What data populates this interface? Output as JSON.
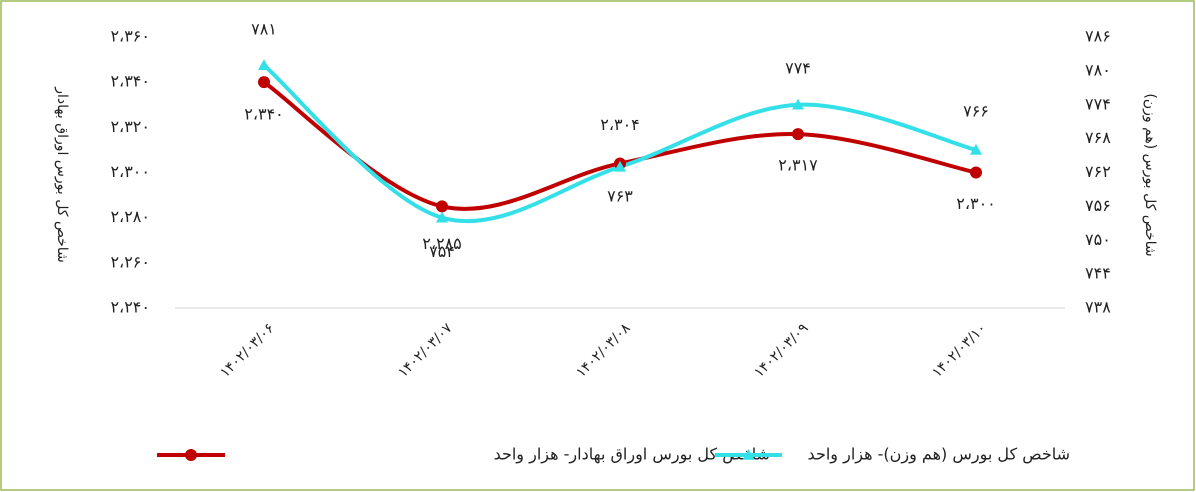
{
  "chart_data": {
    "type": "line",
    "categories": [
      "۱۴۰۲/۰۳/۰۶",
      "۱۴۰۲/۰۳/۰۷",
      "۱۴۰۲/۰۳/۰۸",
      "۱۴۰۲/۰۳/۰۹",
      "۱۴۰۲/۰۳/۱۰"
    ],
    "y_label": "شاخص کل بورس اوراق بهادار",
    "y2_label": "شاخص کل بورس (هم وزن)",
    "ylim": [
      2240,
      2360
    ],
    "yticks": [
      {
        "value": 2240,
        "label": "۲،۲۴۰"
      },
      {
        "value": 2260,
        "label": "۲،۲۶۰"
      },
      {
        "value": 2280,
        "label": "۲،۲۸۰"
      },
      {
        "value": 2300,
        "label": "۲،۳۰۰"
      },
      {
        "value": 2320,
        "label": "۲،۳۲۰"
      },
      {
        "value": 2340,
        "label": "۲،۳۴۰"
      },
      {
        "value": 2360,
        "label": "۲،۳۶۰"
      }
    ],
    "y2lim": [
      738,
      786
    ],
    "y2ticks": [
      {
        "value": 738,
        "label": "۷۳۸"
      },
      {
        "value": 744,
        "label": "۷۴۴"
      },
      {
        "value": 750,
        "label": "۷۵۰"
      },
      {
        "value": 756,
        "label": "۷۵۶"
      },
      {
        "value": 762,
        "label": "۷۶۲"
      },
      {
        "value": 768,
        "label": "۷۶۸"
      },
      {
        "value": 774,
        "label": "۷۷۴"
      },
      {
        "value": 780,
        "label": "۷۸۰"
      },
      {
        "value": 786,
        "label": "۷۸۶"
      }
    ],
    "series": [
      {
        "name": "شاخص کل بورس اوراق بهادار- هزار واحد",
        "color": "#c00000",
        "marker": "circle",
        "axis": "y",
        "values": [
          2340,
          2285,
          2304,
          2317,
          2300
        ],
        "value_labels": [
          "۲،۳۴۰",
          "۲،۲۸۵",
          "۲،۳۰۴",
          "۲،۳۱۷",
          "۲،۳۰۰"
        ]
      },
      {
        "name": "شاخص کل بورس (هم وزن)- هزار واحد",
        "color": "#33e0e8",
        "marker": "triangle",
        "axis": "y2",
        "values": [
          781,
          754,
          763,
          774,
          766
        ],
        "value_labels": [
          "۷۸۱",
          "۷۵۴",
          "۷۶۳",
          "۷۷۴",
          "۷۶۶"
        ]
      }
    ]
  }
}
